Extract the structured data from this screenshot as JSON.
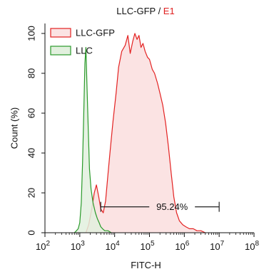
{
  "title": {
    "part1": "LLC-GFP",
    "sep": " / ",
    "part2": "E1"
  },
  "colors": {
    "llc_gfp_line": "#e32222",
    "llc_gfp_fill": "#fbe3e3",
    "llc_line": "#2a9a2a",
    "llc_fill": "#e2f0de",
    "axis": "#111111"
  },
  "chart_data": {
    "type": "area",
    "title": "LLC-GFP / E1",
    "xlabel": "FITC-H",
    "ylabel": "Count (%)",
    "xscale": "log",
    "xlim": [
      100,
      100000000
    ],
    "ylim": [
      0,
      105
    ],
    "x_ticks": [
      {
        "base": "10",
        "exp": "2"
      },
      {
        "base": "10",
        "exp": "3"
      },
      {
        "base": "10",
        "exp": "4"
      },
      {
        "base": "10",
        "exp": "5"
      },
      {
        "base": "10",
        "exp": "6"
      },
      {
        "base": "10",
        "exp": "7"
      },
      {
        "base": "10",
        "exp": "8"
      }
    ],
    "y_ticks": [
      "0",
      "20",
      "40",
      "60",
      "80",
      "100"
    ],
    "legend": {
      "position": "top-left",
      "entries": [
        "LLC-GFP",
        "LLC"
      ]
    },
    "series": [
      {
        "name": "LLC-GFP",
        "x": [
          1500,
          1800,
          2200,
          2600,
          3000,
          3500,
          4000,
          4700,
          5500,
          6500,
          7500,
          9000,
          11000,
          13000,
          16000,
          20000,
          24000,
          28000,
          33000,
          38000,
          44000,
          50000,
          57000,
          65000,
          75000,
          88000,
          100000,
          120000,
          140000,
          170000,
          200000,
          240000,
          290000,
          350000,
          420000,
          500000,
          600000,
          720000,
          900000,
          1100000,
          1400000,
          1800000,
          2300000,
          3000000,
          4000000
        ],
        "y": [
          0,
          4,
          12,
          20,
          24,
          18,
          12,
          10,
          16,
          30,
          42,
          56,
          70,
          83,
          91,
          94,
          99,
          90,
          96,
          100,
          97,
          99,
          93,
          95,
          91,
          88,
          87,
          82,
          80,
          75,
          70,
          64,
          55,
          43,
          30,
          18,
          10,
          6,
          4,
          3,
          2,
          2,
          1,
          1,
          0
        ]
      },
      {
        "name": "LLC",
        "x": [
          700,
          800,
          900,
          1000,
          1100,
          1200,
          1300,
          1400,
          1500,
          1600,
          1750,
          1900,
          2100,
          2400,
          2800,
          3200,
          3600,
          4000,
          4500,
          5200,
          6500,
          8000
        ],
        "y": [
          0,
          1,
          2,
          5,
          15,
          35,
          60,
          85,
          93,
          75,
          52,
          32,
          22,
          15,
          10,
          7,
          5,
          3,
          2,
          1,
          1,
          0
        ]
      }
    ],
    "gate": {
      "label": "95.24%",
      "x_start": 4000,
      "x_end": 10000000,
      "y": 13
    }
  }
}
